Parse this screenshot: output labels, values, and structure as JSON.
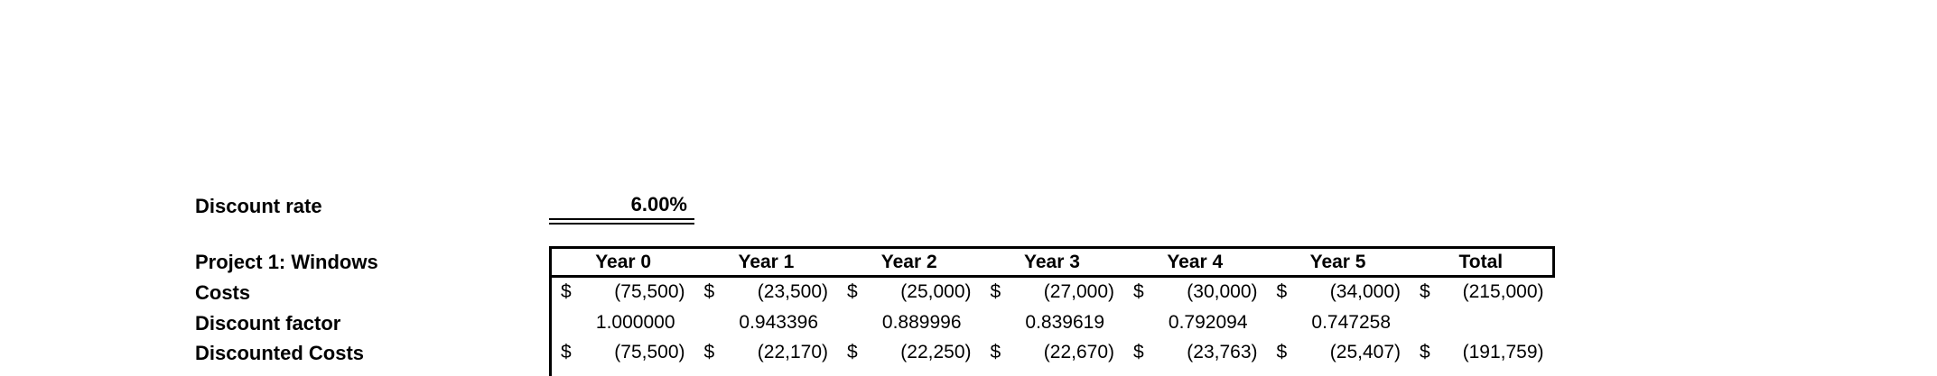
{
  "discount_rate": {
    "label": "Discount rate",
    "value": "6.00%"
  },
  "table": {
    "title": "Project 1: Windows",
    "currency_symbol": "$",
    "columns": [
      "Year 0",
      "Year 1",
      "Year 2",
      "Year 3",
      "Year 4",
      "Year 5",
      "Total"
    ],
    "rows": [
      {
        "label": "Costs",
        "values": [
          "(75,500)",
          "(23,500)",
          "(25,000)",
          "(27,000)",
          "(30,000)",
          "(34,000)",
          "(215,000)"
        ]
      },
      {
        "label": "Discount factor",
        "values": [
          "1.000000",
          "0.943396",
          "0.889996",
          "0.839619",
          "0.792094",
          "0.747258",
          ""
        ]
      },
      {
        "label": "Discounted Costs",
        "values": [
          "(75,500)",
          "(22,170)",
          "(22,250)",
          "(22,670)",
          "(23,763)",
          "(25,407)",
          "(191,759)"
        ]
      }
    ]
  },
  "colors": {
    "text": "#000000",
    "background": "#ffffff",
    "border": "#000000"
  }
}
